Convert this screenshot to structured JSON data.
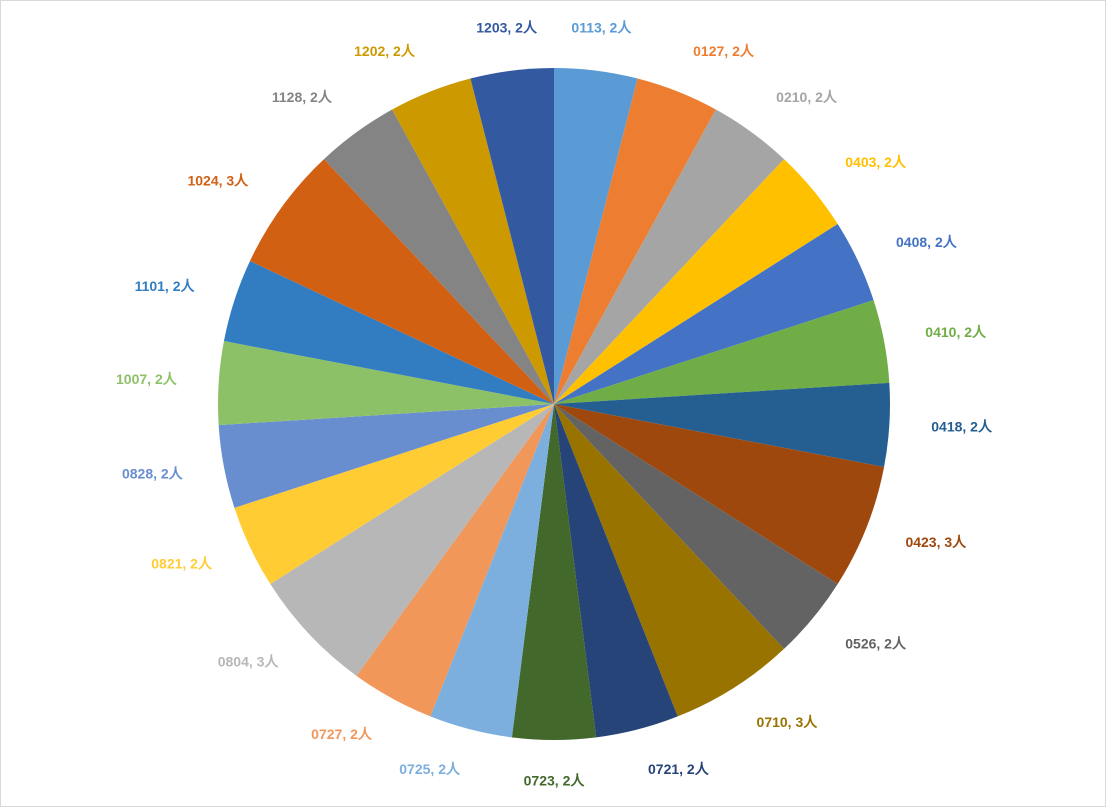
{
  "chart_data": {
    "type": "pie",
    "title": "",
    "label_separator": ", ",
    "slices": [
      {
        "category": "0113",
        "value": 2,
        "value_label": "2人",
        "color": "#5B9BD5"
      },
      {
        "category": "0127",
        "value": 2,
        "value_label": "2人",
        "color": "#ED7D31"
      },
      {
        "category": "0210",
        "value": 2,
        "value_label": "2人",
        "color": "#A5A5A5"
      },
      {
        "category": "0403",
        "value": 2,
        "value_label": "2人",
        "color": "#FFC000"
      },
      {
        "category": "0408",
        "value": 2,
        "value_label": "2人",
        "color": "#4472C4"
      },
      {
        "category": "0410",
        "value": 2,
        "value_label": "2人",
        "color": "#70AD47"
      },
      {
        "category": "0418",
        "value": 2,
        "value_label": "2人",
        "color": "#255E91"
      },
      {
        "category": "0423",
        "value": 3,
        "value_label": "3人",
        "color": "#9E480E"
      },
      {
        "category": "0526",
        "value": 2,
        "value_label": "2人",
        "color": "#636363"
      },
      {
        "category": "0710",
        "value": 3,
        "value_label": "3人",
        "color": "#997300"
      },
      {
        "category": "0721",
        "value": 2,
        "value_label": "2人",
        "color": "#264478"
      },
      {
        "category": "0723",
        "value": 2,
        "value_label": "2人",
        "color": "#43682B"
      },
      {
        "category": "0725",
        "value": 2,
        "value_label": "2人",
        "color": "#7CAFDD"
      },
      {
        "category": "0727",
        "value": 2,
        "value_label": "2人",
        "color": "#F1975A"
      },
      {
        "category": "0804",
        "value": 3,
        "value_label": "3人",
        "color": "#B7B7B7"
      },
      {
        "category": "0821",
        "value": 2,
        "value_label": "2人",
        "color": "#FFCD33"
      },
      {
        "category": "0828",
        "value": 2,
        "value_label": "2人",
        "color": "#698ED0"
      },
      {
        "category": "1007",
        "value": 2,
        "value_label": "2人",
        "color": "#8CC168"
      },
      {
        "category": "1101",
        "value": 2,
        "value_label": "2人",
        "color": "#327DC2"
      },
      {
        "category": "1024",
        "value": 3,
        "value_label": "3人",
        "color": "#D26012"
      },
      {
        "category": "1128",
        "value": 2,
        "value_label": "2人",
        "color": "#848484"
      },
      {
        "category": "1202",
        "value": 2,
        "value_label": "2人",
        "color": "#CC9A00"
      },
      {
        "category": "1203",
        "value": 2,
        "value_label": "2人",
        "color": "#335AA1"
      }
    ],
    "legend": "none",
    "start_angle_deg": 0,
    "direction": "clockwise"
  }
}
